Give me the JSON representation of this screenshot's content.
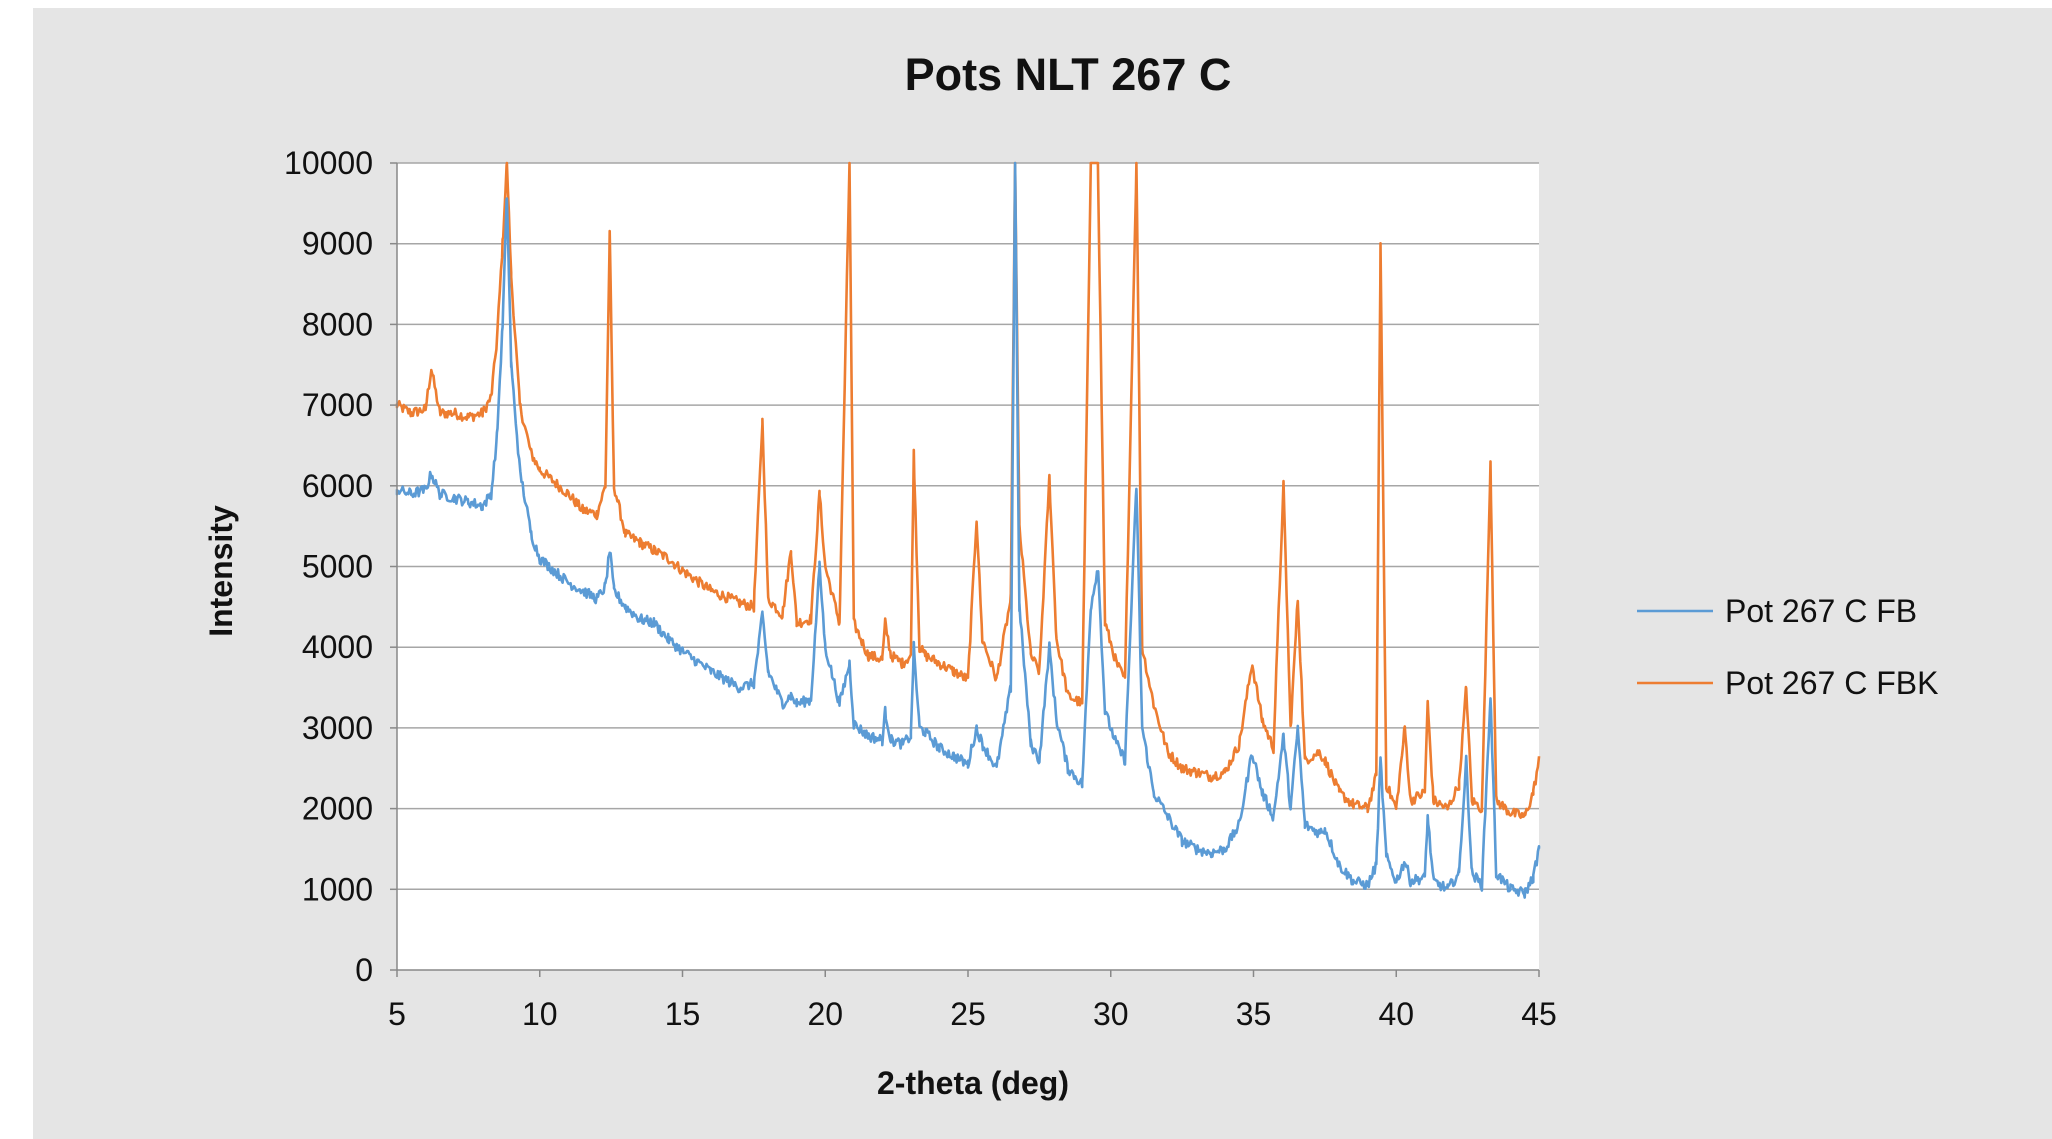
{
  "chart_data": {
    "type": "line",
    "title": "Pots NLT 267 C",
    "xlabel": "2-theta (deg)",
    "ylabel": "Intensity",
    "xlim": [
      5,
      45
    ],
    "ylim": [
      0,
      10000
    ],
    "x_ticks": [
      "5",
      "10",
      "15",
      "20",
      "25",
      "30",
      "35",
      "40",
      "45"
    ],
    "y_ticks": [
      "0",
      "1000",
      "2000",
      "3000",
      "4000",
      "5000",
      "6000",
      "7000",
      "8000",
      "9000",
      "10000"
    ],
    "grid": "horizontal",
    "legend_position": "right",
    "series": [
      {
        "name": "Pot 267 C FB",
        "color": "#5b9bd5",
        "points": [
          [
            5,
            5950
          ],
          [
            5.5,
            5900
          ],
          [
            6,
            5950
          ],
          [
            6.2,
            6150
          ],
          [
            6.5,
            5900
          ],
          [
            7,
            5850
          ],
          [
            7.5,
            5800
          ],
          [
            8,
            5750
          ],
          [
            8.3,
            5900
          ],
          [
            8.5,
            6600
          ],
          [
            8.7,
            8000
          ],
          [
            8.85,
            9600
          ],
          [
            9,
            7500
          ],
          [
            9.3,
            6200
          ],
          [
            9.7,
            5400
          ],
          [
            10,
            5100
          ],
          [
            11,
            4800
          ],
          [
            12,
            4600
          ],
          [
            12.3,
            4750
          ],
          [
            12.45,
            5200
          ],
          [
            12.6,
            4700
          ],
          [
            13,
            4500
          ],
          [
            13.5,
            4350
          ],
          [
            14,
            4300
          ],
          [
            14.5,
            4100
          ],
          [
            15,
            3950
          ],
          [
            16,
            3700
          ],
          [
            17,
            3500
          ],
          [
            17.5,
            3550
          ],
          [
            17.8,
            4400
          ],
          [
            18,
            3700
          ],
          [
            18.5,
            3300
          ],
          [
            18.8,
            3400
          ],
          [
            19,
            3300
          ],
          [
            19.5,
            3350
          ],
          [
            19.8,
            5000
          ],
          [
            20,
            4000
          ],
          [
            20.5,
            3300
          ],
          [
            20.85,
            3800
          ],
          [
            21,
            3050
          ],
          [
            21.5,
            2900
          ],
          [
            22,
            2850
          ],
          [
            22.1,
            3200
          ],
          [
            22.3,
            2850
          ],
          [
            22.7,
            2800
          ],
          [
            23,
            2900
          ],
          [
            23.1,
            4000
          ],
          [
            23.3,
            3000
          ],
          [
            23.5,
            2950
          ],
          [
            24,
            2750
          ],
          [
            24.5,
            2650
          ],
          [
            25,
            2550
          ],
          [
            25.3,
            3000
          ],
          [
            25.5,
            2800
          ],
          [
            26,
            2500
          ],
          [
            26.5,
            3500
          ],
          [
            26.65,
            10000
          ],
          [
            26.8,
            4500
          ],
          [
            27.2,
            2800
          ],
          [
            27.5,
            2600
          ],
          [
            27.85,
            4000
          ],
          [
            28.1,
            3100
          ],
          [
            28.5,
            2500
          ],
          [
            29,
            2300
          ],
          [
            29.3,
            4500
          ],
          [
            29.55,
            5000
          ],
          [
            29.8,
            3200
          ],
          [
            30.2,
            2800
          ],
          [
            30.5,
            2600
          ],
          [
            30.9,
            6000
          ],
          [
            31.1,
            3000
          ],
          [
            31.5,
            2200
          ],
          [
            32,
            1900
          ],
          [
            32.5,
            1600
          ],
          [
            33,
            1500
          ],
          [
            33.5,
            1450
          ],
          [
            34,
            1500
          ],
          [
            34.5,
            1800
          ],
          [
            34.95,
            2700
          ],
          [
            35.3,
            2200
          ],
          [
            35.7,
            1900
          ],
          [
            36.05,
            2900
          ],
          [
            36.3,
            2000
          ],
          [
            36.55,
            3000
          ],
          [
            36.8,
            1800
          ],
          [
            37.3,
            1700
          ],
          [
            37.5,
            1750
          ],
          [
            38,
            1300
          ],
          [
            38.5,
            1100
          ],
          [
            39,
            1050
          ],
          [
            39.3,
            1300
          ],
          [
            39.45,
            2600
          ],
          [
            39.65,
            1400
          ],
          [
            40,
            1100
          ],
          [
            40.3,
            1350
          ],
          [
            40.5,
            1100
          ],
          [
            41,
            1150
          ],
          [
            41.1,
            1900
          ],
          [
            41.3,
            1100
          ],
          [
            41.8,
            1000
          ],
          [
            42.2,
            1200
          ],
          [
            42.45,
            2600
          ],
          [
            42.65,
            1200
          ],
          [
            43,
            1050
          ],
          [
            43.3,
            3400
          ],
          [
            43.5,
            1200
          ],
          [
            44,
            1000
          ],
          [
            44.5,
            950
          ],
          [
            44.8,
            1150
          ],
          [
            45,
            1500
          ]
        ]
      },
      {
        "name": "Pot 267 C FBK",
        "color": "#ed7d31",
        "points": [
          [
            5,
            7000
          ],
          [
            5.5,
            6900
          ],
          [
            6,
            6950
          ],
          [
            6.2,
            7450
          ],
          [
            6.5,
            6900
          ],
          [
            7,
            6900
          ],
          [
            7.5,
            6850
          ],
          [
            8,
            6900
          ],
          [
            8.3,
            7100
          ],
          [
            8.5,
            7800
          ],
          [
            8.7,
            9000
          ],
          [
            8.85,
            10000
          ],
          [
            9,
            8600
          ],
          [
            9.3,
            7000
          ],
          [
            9.7,
            6400
          ],
          [
            10,
            6200
          ],
          [
            11,
            5900
          ],
          [
            11.5,
            5700
          ],
          [
            12,
            5650
          ],
          [
            12.3,
            6000
          ],
          [
            12.45,
            9100
          ],
          [
            12.6,
            6000
          ],
          [
            13,
            5400
          ],
          [
            13.5,
            5300
          ],
          [
            14,
            5200
          ],
          [
            14.5,
            5100
          ],
          [
            15,
            4950
          ],
          [
            16,
            4700
          ],
          [
            17,
            4550
          ],
          [
            17.5,
            4500
          ],
          [
            17.8,
            6800
          ],
          [
            18,
            4600
          ],
          [
            18.5,
            4400
          ],
          [
            18.8,
            5200
          ],
          [
            19,
            4300
          ],
          [
            19.5,
            4350
          ],
          [
            19.8,
            5900
          ],
          [
            20,
            5000
          ],
          [
            20.5,
            4300
          ],
          [
            20.85,
            10000
          ],
          [
            21,
            4300
          ],
          [
            21.5,
            3900
          ],
          [
            22,
            3850
          ],
          [
            22.1,
            4300
          ],
          [
            22.3,
            3900
          ],
          [
            22.7,
            3800
          ],
          [
            23,
            3900
          ],
          [
            23.1,
            6400
          ],
          [
            23.3,
            4000
          ],
          [
            23.5,
            3900
          ],
          [
            24,
            3800
          ],
          [
            24.5,
            3700
          ],
          [
            25,
            3600
          ],
          [
            25.3,
            5600
          ],
          [
            25.5,
            4100
          ],
          [
            26,
            3600
          ],
          [
            26.5,
            4600
          ],
          [
            26.65,
            10000
          ],
          [
            26.8,
            5500
          ],
          [
            27.2,
            3900
          ],
          [
            27.5,
            3700
          ],
          [
            27.85,
            6100
          ],
          [
            28.1,
            4100
          ],
          [
            28.5,
            3400
          ],
          [
            29,
            3300
          ],
          [
            29.3,
            10000
          ],
          [
            29.55,
            10000
          ],
          [
            29.8,
            4300
          ],
          [
            30.2,
            3800
          ],
          [
            30.5,
            3600
          ],
          [
            30.9,
            10000
          ],
          [
            31.1,
            4000
          ],
          [
            31.5,
            3300
          ],
          [
            32,
            2700
          ],
          [
            32.5,
            2500
          ],
          [
            33,
            2450
          ],
          [
            33.5,
            2400
          ],
          [
            34,
            2450
          ],
          [
            34.5,
            2800
          ],
          [
            34.95,
            3800
          ],
          [
            35.3,
            3100
          ],
          [
            35.7,
            2750
          ],
          [
            36.05,
            6000
          ],
          [
            36.3,
            3000
          ],
          [
            36.55,
            4600
          ],
          [
            36.8,
            2600
          ],
          [
            37.3,
            2700
          ],
          [
            37.5,
            2600
          ],
          [
            38,
            2200
          ],
          [
            38.5,
            2050
          ],
          [
            39,
            2000
          ],
          [
            39.3,
            2400
          ],
          [
            39.45,
            9000
          ],
          [
            39.65,
            2300
          ],
          [
            40,
            2000
          ],
          [
            40.3,
            3000
          ],
          [
            40.5,
            2100
          ],
          [
            41,
            2200
          ],
          [
            41.1,
            3300
          ],
          [
            41.3,
            2100
          ],
          [
            41.8,
            2000
          ],
          [
            42.2,
            2300
          ],
          [
            42.45,
            3500
          ],
          [
            42.65,
            2100
          ],
          [
            43,
            2000
          ],
          [
            43.3,
            6300
          ],
          [
            43.5,
            2100
          ],
          [
            44,
            1950
          ],
          [
            44.5,
            1900
          ],
          [
            44.8,
            2200
          ],
          [
            45,
            2600
          ]
        ]
      }
    ]
  }
}
